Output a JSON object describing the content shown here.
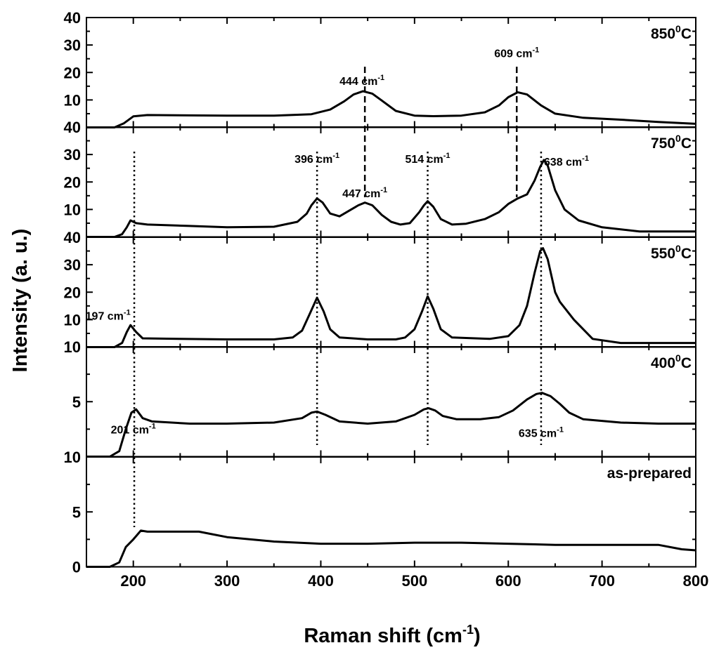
{
  "chart_data": {
    "type": "line",
    "xlabel": "Raman shift (cm",
    "xlabel_sup": "-1",
    "xlabel_end": ")",
    "ylabel": "Intensity (a. u.)",
    "xlim": [
      150,
      800
    ],
    "x_ticks": [
      "200",
      "300",
      "400",
      "500",
      "600",
      "700",
      "800"
    ],
    "panels": [
      {
        "label": "850",
        "label_sup": "0",
        "label_end": "C",
        "ylim": [
          0,
          40
        ],
        "y_ticks": [
          "10",
          "20",
          "30",
          "40"
        ],
        "x": [
          150,
          180,
          190,
          200,
          215,
          300,
          350,
          390,
          410,
          425,
          435,
          445,
          455,
          465,
          480,
          500,
          520,
          550,
          575,
          590,
          600,
          610,
          620,
          635,
          650,
          680,
          720,
          760,
          800
        ],
        "y": [
          0,
          0,
          1.5,
          4,
          4.5,
          4.3,
          4.3,
          4.8,
          6.5,
          9.5,
          12.0,
          13.2,
          12.3,
          9.8,
          6.0,
          4.3,
          4.1,
          4.3,
          5.5,
          8.0,
          11.0,
          12.8,
          12.0,
          8.0,
          5.0,
          3.5,
          2.8,
          2.0,
          1.3
        ]
      },
      {
        "label": "750",
        "label_sup": "0",
        "label_end": "C",
        "ylim": [
          0,
          40
        ],
        "y_ticks": [
          "10",
          "20",
          "30",
          "40"
        ],
        "x": [
          150,
          180,
          188,
          193,
          197,
          203,
          215,
          260,
          300,
          350,
          375,
          385,
          390,
          396,
          402,
          410,
          420,
          430,
          440,
          447,
          455,
          465,
          475,
          485,
          495,
          505,
          510,
          514,
          520,
          528,
          540,
          555,
          575,
          590,
          600,
          610,
          620,
          628,
          634,
          638,
          642,
          650,
          660,
          675,
          700,
          740,
          800
        ],
        "y": [
          0,
          0,
          1.0,
          3.5,
          6.0,
          5.0,
          4.5,
          4.0,
          3.5,
          3.7,
          5.5,
          8.5,
          11.5,
          14.0,
          12.5,
          8.5,
          7.5,
          9.5,
          11.5,
          12.5,
          11.5,
          8.0,
          5.5,
          4.5,
          5.0,
          9.0,
          11.5,
          13.0,
          11.0,
          6.5,
          4.5,
          4.8,
          6.5,
          9.0,
          12.0,
          14.0,
          15.5,
          20.5,
          25.5,
          28.0,
          26.0,
          17.0,
          10.0,
          6.0,
          3.5,
          2.0,
          2.0
        ]
      },
      {
        "label": "550",
        "label_sup": "0",
        "label_end": "C",
        "ylim": [
          0,
          40
        ],
        "y_ticks": [
          "10",
          "20",
          "30",
          "40"
        ],
        "x": [
          150,
          180,
          188,
          193,
          197,
          203,
          210,
          250,
          300,
          350,
          370,
          380,
          388,
          396,
          403,
          410,
          420,
          450,
          480,
          490,
          500,
          508,
          514,
          520,
          528,
          540,
          580,
          600,
          612,
          620,
          628,
          634,
          637,
          642,
          650,
          655,
          670,
          690,
          720,
          760,
          800
        ],
        "y": [
          0,
          0,
          1.5,
          5.5,
          8.0,
          5.5,
          3.2,
          3.0,
          2.8,
          2.8,
          3.5,
          6.0,
          12.0,
          18.0,
          13.0,
          6.5,
          3.5,
          2.8,
          2.8,
          3.5,
          6.5,
          13.0,
          18.5,
          14.0,
          6.5,
          3.5,
          3.0,
          4.0,
          8.0,
          15.0,
          27.0,
          35.0,
          36.0,
          32.0,
          20.0,
          16.5,
          10.0,
          3.0,
          1.5,
          1.5,
          1.5
        ]
      },
      {
        "label": "400",
        "label_sup": "0",
        "label_end": "C",
        "ylim": [
          0,
          10
        ],
        "y_ticks": [
          "5",
          "10"
        ],
        "x": [
          150,
          175,
          185,
          192,
          198,
          203,
          210,
          220,
          260,
          300,
          350,
          380,
          390,
          396,
          405,
          420,
          450,
          480,
          500,
          510,
          515,
          522,
          530,
          545,
          570,
          590,
          605,
          620,
          630,
          636,
          645,
          655,
          665,
          680,
          720,
          760,
          800
        ],
        "y": [
          0,
          0,
          0.5,
          2.5,
          4.0,
          4.3,
          3.5,
          3.2,
          3.0,
          3.0,
          3.1,
          3.5,
          4.0,
          4.1,
          3.8,
          3.2,
          3.0,
          3.2,
          3.8,
          4.3,
          4.4,
          4.2,
          3.7,
          3.4,
          3.4,
          3.6,
          4.2,
          5.2,
          5.7,
          5.8,
          5.5,
          4.8,
          4.0,
          3.4,
          3.1,
          3.0,
          3.0
        ]
      },
      {
        "label": "as-prepared",
        "label_sup": "",
        "label_end": "",
        "ylim": [
          0,
          10
        ],
        "y_ticks": [
          "0",
          "5",
          "10"
        ],
        "x": [
          150,
          175,
          185,
          192,
          200,
          208,
          215,
          270,
          300,
          350,
          400,
          450,
          500,
          550,
          600,
          650,
          700,
          760,
          785,
          800
        ],
        "y": [
          0,
          0,
          0.4,
          1.8,
          2.5,
          3.3,
          3.2,
          3.2,
          2.7,
          2.3,
          2.1,
          2.1,
          2.2,
          2.2,
          2.1,
          2.0,
          2.0,
          2.0,
          1.6,
          1.5
        ]
      }
    ],
    "guides": [
      {
        "x": 447,
        "from_panel": 0,
        "to_panel": 1,
        "style": "dashed"
      },
      {
        "x": 609,
        "from_panel": 0,
        "to_panel": 1,
        "style": "dashed"
      },
      {
        "x": 201,
        "from_panel": 1,
        "to_panel": 4,
        "style": "dotted"
      },
      {
        "x": 396,
        "from_panel": 1,
        "to_panel": 3,
        "style": "dotted"
      },
      {
        "x": 514,
        "from_panel": 1,
        "to_panel": 3,
        "style": "dotted"
      },
      {
        "x": 635,
        "from_panel": 1,
        "to_panel": 3,
        "style": "dotted"
      }
    ],
    "annotations": [
      {
        "panel": 0,
        "x": 444,
        "y": 15.5,
        "text": "444 cm",
        "sup": "-1"
      },
      {
        "panel": 0,
        "x": 609,
        "y": 25.5,
        "text": "609 cm",
        "sup": "-1"
      },
      {
        "panel": 1,
        "x": 396,
        "y": 27.0,
        "text": "396 cm",
        "sup": "-1"
      },
      {
        "panel": 1,
        "x": 447,
        "y": 14.5,
        "text": "447 cm",
        "sup": "-1"
      },
      {
        "panel": 1,
        "x": 514,
        "y": 27.0,
        "text": "514 cm",
        "sup": "-1"
      },
      {
        "panel": 1,
        "x": 662,
        "y": 26.0,
        "text": "638 cm",
        "sup": "-1"
      },
      {
        "panel": 2,
        "x": 173,
        "y": 10.0,
        "text": "197 cm",
        "sup": "-1"
      },
      {
        "panel": 3,
        "x": 200,
        "y": 2.1,
        "text": "201 cm",
        "sup": "-1"
      },
      {
        "panel": 3,
        "x": 635,
        "y": 1.8,
        "text": "635 cm",
        "sup": "-1"
      }
    ]
  }
}
